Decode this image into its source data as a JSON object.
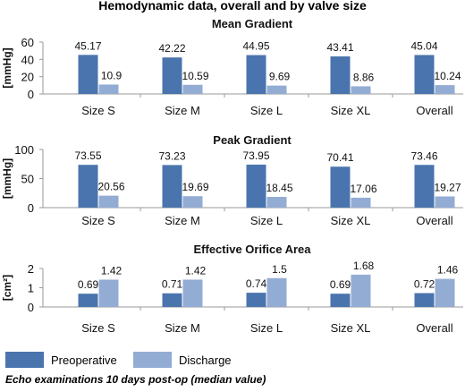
{
  "figure": {
    "title": "Hemodynamic data, overall and by valve size",
    "footnote": "Echo examinations 10 days post-op (median value)",
    "legend": [
      "Preoperative",
      "Discharge"
    ],
    "colors": {
      "pre": "#4a74ad",
      "dis": "#93acd4",
      "axis": "#9a9a9a",
      "text": "#111111"
    }
  },
  "chart_data": [
    {
      "type": "bar",
      "title": "Mean Gradient",
      "ylabel": "[mmHg]",
      "categories": [
        "Size S",
        "Size M",
        "Size L",
        "Size XL",
        "Overall"
      ],
      "ylim": [
        0,
        60
      ],
      "yticks": [
        "0",
        "20",
        "40",
        "60"
      ],
      "series": [
        {
          "name": "Preoperative",
          "values": [
            45.17,
            42.22,
            44.95,
            43.41,
            45.04
          ]
        },
        {
          "name": "Discharge",
          "values": [
            10.9,
            10.59,
            9.69,
            8.86,
            10.24
          ]
        }
      ],
      "labels": [
        [
          "45.17",
          "42.22",
          "44.95",
          "43.41",
          "45.04"
        ],
        [
          "10.9",
          "10.59",
          "9.69",
          "8.86",
          "10.24"
        ]
      ]
    },
    {
      "type": "bar",
      "title": "Peak Gradient",
      "ylabel": "[mmHg]",
      "categories": [
        "Size S",
        "Size M",
        "Size L",
        "Size XL",
        "Overall"
      ],
      "ylim": [
        0,
        100
      ],
      "yticks": [
        "0",
        "50",
        "100"
      ],
      "series": [
        {
          "name": "Preoperative",
          "values": [
            73.55,
            73.23,
            73.95,
            70.41,
            73.46
          ]
        },
        {
          "name": "Discharge",
          "values": [
            20.56,
            19.69,
            18.45,
            17.06,
            19.27
          ]
        }
      ],
      "labels": [
        [
          "73.55",
          "73.23",
          "73.95",
          "70.41",
          "73.46"
        ],
        [
          "20.56",
          "19.69",
          "18.45",
          "17.06",
          "19.27"
        ]
      ]
    },
    {
      "type": "bar",
      "title": "Effective Orifice Area",
      "ylabel": "[cm²]",
      "categories": [
        "Size S",
        "Size M",
        "Size L",
        "Size XL",
        "Overall"
      ],
      "ylim": [
        0,
        2
      ],
      "yticks": [
        "0",
        "1",
        "2"
      ],
      "series": [
        {
          "name": "Preoperative",
          "values": [
            0.69,
            0.71,
            0.74,
            0.69,
            0.72
          ]
        },
        {
          "name": "Discharge",
          "values": [
            1.42,
            1.42,
            1.5,
            1.68,
            1.46
          ]
        }
      ],
      "labels": [
        [
          "0.69",
          "0.71",
          "0.74",
          "0.69",
          "0.72"
        ],
        [
          "1.42",
          "1.42",
          "1.5",
          "1.68",
          "1.46"
        ]
      ]
    }
  ]
}
